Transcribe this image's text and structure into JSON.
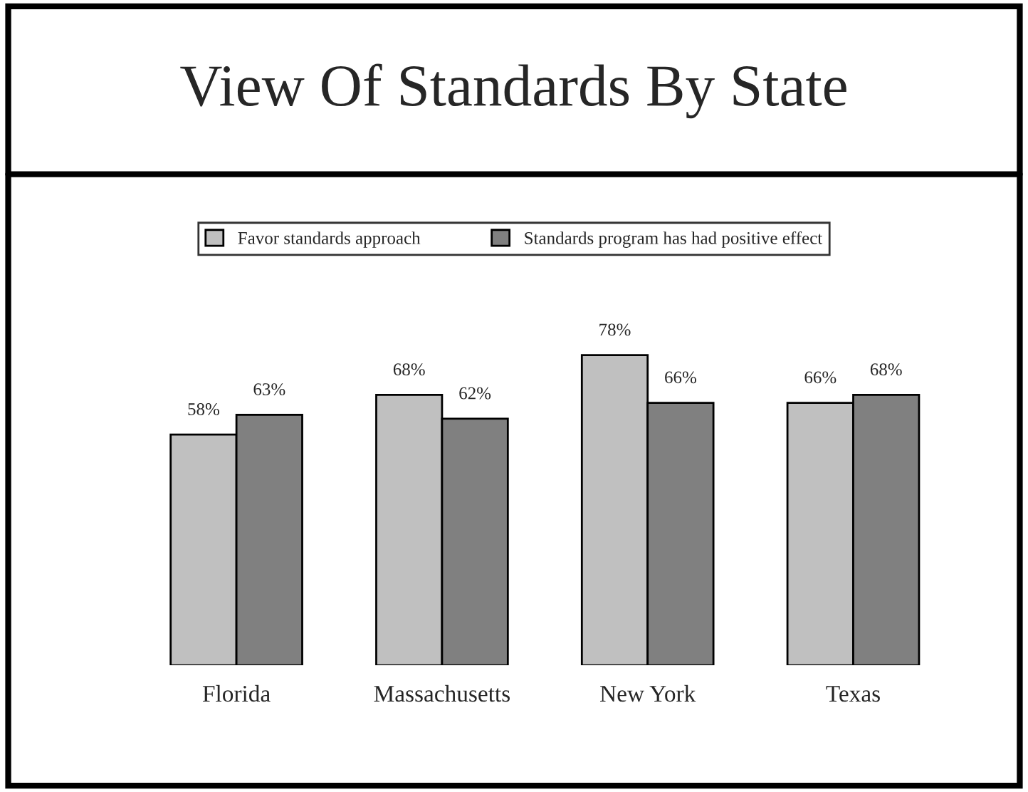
{
  "chart_data": {
    "type": "bar",
    "title": "View Of Standards By State",
    "categories": [
      "Florida",
      "Massachusetts",
      "New York",
      "Texas"
    ],
    "series": [
      {
        "name": "Favor standards approach",
        "color": "#c0c0c0",
        "values": [
          58,
          68,
          78,
          66
        ],
        "value_labels": [
          "58%",
          "68%",
          "78%",
          "66%"
        ]
      },
      {
        "name": "Standards program has had positive effect",
        "color": "#808080",
        "values": [
          63,
          62,
          66,
          68
        ],
        "value_labels": [
          "63%",
          "62%",
          "66%",
          "68%"
        ]
      }
    ],
    "legend": "top",
    "grid": false
  }
}
